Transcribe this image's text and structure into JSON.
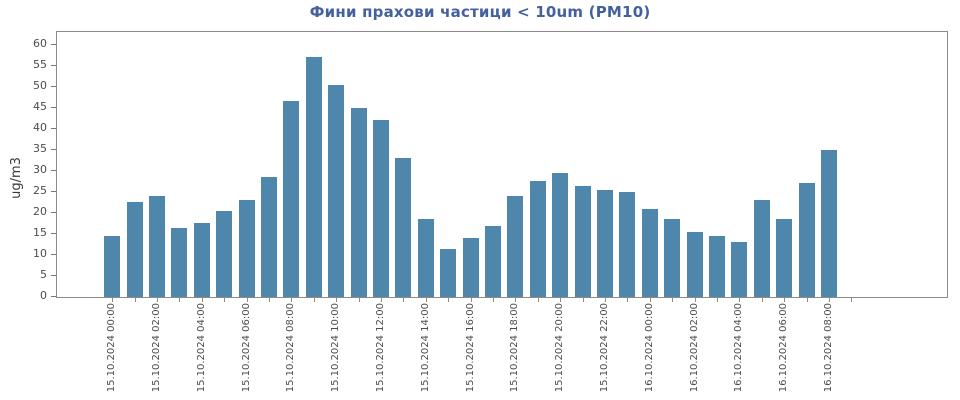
{
  "chart_data": {
    "type": "bar",
    "title": "Фини прахови частици < 10um (PM10)",
    "ylabel": "ug/m3",
    "ylim": [
      0,
      63
    ],
    "yticks": [
      0,
      5,
      10,
      15,
      20,
      25,
      30,
      35,
      40,
      45,
      50,
      55,
      60
    ],
    "xtick_label_every": 2,
    "grid": false,
    "bar_color": "#4E86AC",
    "title_color": "#44619D",
    "axis_text_color": "#4d4d4d",
    "x": [
      "15.10.2024 00:00",
      "15.10.2024 01:00",
      "15.10.2024 02:00",
      "15.10.2024 03:00",
      "15.10.2024 04:00",
      "15.10.2024 05:00",
      "15.10.2024 06:00",
      "15.10.2024 07:00",
      "15.10.2024 08:00",
      "15.10.2024 09:00",
      "15.10.2024 10:00",
      "15.10.2024 11:00",
      "15.10.2024 12:00",
      "15.10.2024 13:00",
      "15.10.2024 14:00",
      "15.10.2024 15:00",
      "15.10.2024 16:00",
      "15.10.2024 17:00",
      "15.10.2024 18:00",
      "15.10.2024 19:00",
      "15.10.2024 20:00",
      "15.10.2024 21:00",
      "15.10.2024 22:00",
      "15.10.2024 23:00",
      "16.10.2024 00:00",
      "16.10.2024 01:00",
      "16.10.2024 02:00",
      "16.10.2024 03:00",
      "16.10.2024 04:00",
      "16.10.2024 05:00",
      "16.10.2024 06:00",
      "16.10.2024 07:00",
      "16.10.2024 08:00"
    ],
    "values": [
      14.5,
      22.5,
      24,
      16.5,
      17.5,
      20.5,
      23,
      28.5,
      46.5,
      57,
      50.5,
      45,
      42,
      33,
      18.5,
      11.5,
      14,
      17,
      24,
      27.5,
      29.5,
      26.5,
      25.5,
      25,
      21,
      18.5,
      15.5,
      14.5,
      13,
      23,
      18.5,
      27,
      35
    ]
  }
}
